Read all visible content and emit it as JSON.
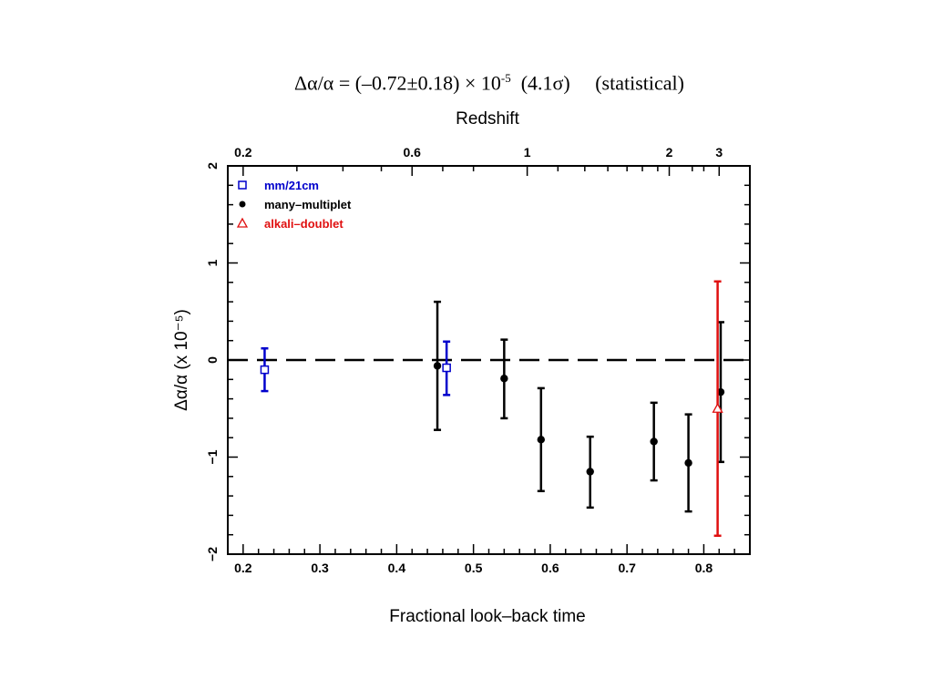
{
  "headline": {
    "prefix": "Δα/α = (–0.72±0.18) × 10",
    "exponent": "-5",
    "suffix": "  (4.1σ)     (statistical)"
  },
  "chart_data": {
    "type": "scatter",
    "title": "",
    "xlabel": "Fractional look–back time",
    "ylabel": "Δα/α (x 10⁻⁵)",
    "top_axis_label": "Redshift",
    "xlim": [
      0.18,
      0.86
    ],
    "ylim": [
      -2,
      2
    ],
    "x_ticks": [
      0.2,
      0.3,
      0.4,
      0.5,
      0.6,
      0.7,
      0.8
    ],
    "x_tick_labels": [
      "0.2",
      "0.3",
      "0.4",
      "0.5",
      "0.6",
      "0.7",
      "0.8"
    ],
    "y_ticks": [
      -2,
      -1,
      0,
      1,
      2
    ],
    "y_tick_labels": [
      "−2",
      "−1",
      "0",
      "1",
      "2"
    ],
    "top_ticks": [
      {
        "label": "0.2",
        "x": 0.2
      },
      {
        "label": "0.6",
        "x": 0.42
      },
      {
        "label": "1",
        "x": 0.57
      },
      {
        "label": "2",
        "x": 0.755
      },
      {
        "label": "3",
        "x": 0.82
      }
    ],
    "reference_line": {
      "y": 0,
      "style": "dashed"
    },
    "legend_position": "top-left",
    "series": [
      {
        "name": "mm/21cm",
        "marker": "square",
        "color": "#0000cc",
        "points": [
          {
            "x": 0.228,
            "y": -0.1,
            "lo": -0.32,
            "hi": 0.12
          },
          {
            "x": 0.465,
            "y": -0.08,
            "lo": -0.36,
            "hi": 0.19
          }
        ]
      },
      {
        "name": "many–multiplet",
        "marker": "circle",
        "color": "#000000",
        "points": [
          {
            "x": 0.453,
            "y": -0.06,
            "lo": -0.72,
            "hi": 0.6
          },
          {
            "x": 0.54,
            "y": -0.19,
            "lo": -0.6,
            "hi": 0.21
          },
          {
            "x": 0.588,
            "y": -0.82,
            "lo": -1.35,
            "hi": -0.29
          },
          {
            "x": 0.652,
            "y": -1.15,
            "lo": -1.52,
            "hi": -0.79
          },
          {
            "x": 0.735,
            "y": -0.84,
            "lo": -1.24,
            "hi": -0.44
          },
          {
            "x": 0.78,
            "y": -1.06,
            "lo": -1.56,
            "hi": -0.56
          },
          {
            "x": 0.822,
            "y": -0.33,
            "lo": -1.05,
            "hi": 0.39
          }
        ]
      },
      {
        "name": "alkali–doublet",
        "marker": "triangle",
        "color": "#e01010",
        "points": [
          {
            "x": 0.818,
            "y": -0.5,
            "lo": -1.81,
            "hi": 0.81
          }
        ]
      }
    ]
  }
}
